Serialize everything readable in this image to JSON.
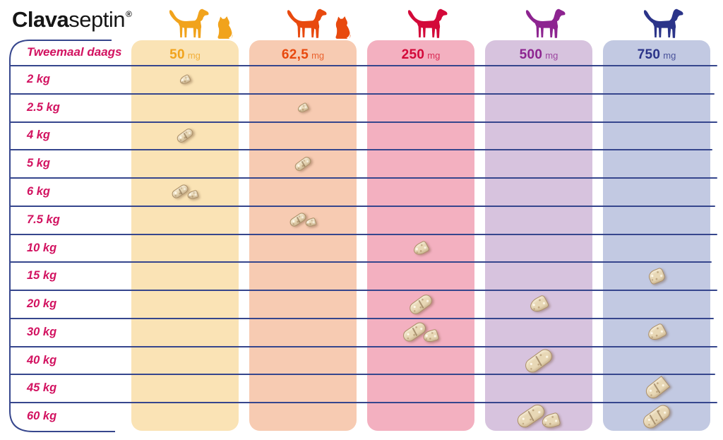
{
  "brand": {
    "bold": "Clava",
    "light": "septin",
    "registered": "®"
  },
  "schedule_label": "Tweemaal daags",
  "columns": [
    {
      "strength": "50",
      "unit": "mg",
      "accent": "#F1A31C",
      "band": "#FAE3B5",
      "animals": [
        "dog",
        "cat"
      ]
    },
    {
      "strength": "62,5",
      "unit": "mg",
      "accent": "#E8490E",
      "band": "#F7CBB2",
      "animals": [
        "dog",
        "cat"
      ]
    },
    {
      "strength": "250",
      "unit": "mg",
      "accent": "#D30939",
      "band": "#F3B0C0",
      "animals": [
        "dog"
      ]
    },
    {
      "strength": "500",
      "unit": "mg",
      "accent": "#8D2490",
      "band": "#D7C3DE",
      "animals": [
        "dog"
      ]
    },
    {
      "strength": "750",
      "unit": "mg",
      "accent": "#2B3489",
      "band": "#C2C9E2",
      "animals": [
        "dog"
      ]
    }
  ],
  "colors": {
    "line": "#36468D",
    "label_pink": "#D21260",
    "logo_black": "#161616",
    "tablet_beige": "#E8D8B6",
    "background": "#FFFFFF"
  },
  "chart_data": {
    "type": "table",
    "title": "Clavaseptin",
    "subtitle": "Tweemaal daags",
    "columns": [
      "50 mg",
      "62,5 mg",
      "250 mg",
      "500 mg",
      "750 mg"
    ],
    "rows": [
      "2 kg",
      "2.5 kg",
      "4 kg",
      "5 kg",
      "6 kg",
      "7.5 kg",
      "10 kg",
      "15 kg",
      "20 kg",
      "30 kg",
      "40 kg",
      "45 kg",
      "60 kg"
    ],
    "matrix": [
      [
        0.5,
        null,
        null,
        null,
        null
      ],
      [
        null,
        0.5,
        null,
        null,
        null
      ],
      [
        1,
        null,
        null,
        null,
        null
      ],
      [
        null,
        1,
        null,
        null,
        null
      ],
      [
        1.5,
        null,
        null,
        null,
        null
      ],
      [
        null,
        1.5,
        null,
        null,
        null
      ],
      [
        null,
        null,
        0.5,
        null,
        null
      ],
      [
        null,
        null,
        null,
        null,
        0.25
      ],
      [
        null,
        null,
        1,
        0.5,
        null
      ],
      [
        null,
        null,
        1.5,
        null,
        0.5
      ],
      [
        null,
        null,
        null,
        1,
        null
      ],
      [
        null,
        null,
        null,
        null,
        0.75
      ],
      [
        null,
        null,
        null,
        1.5,
        1
      ]
    ]
  }
}
